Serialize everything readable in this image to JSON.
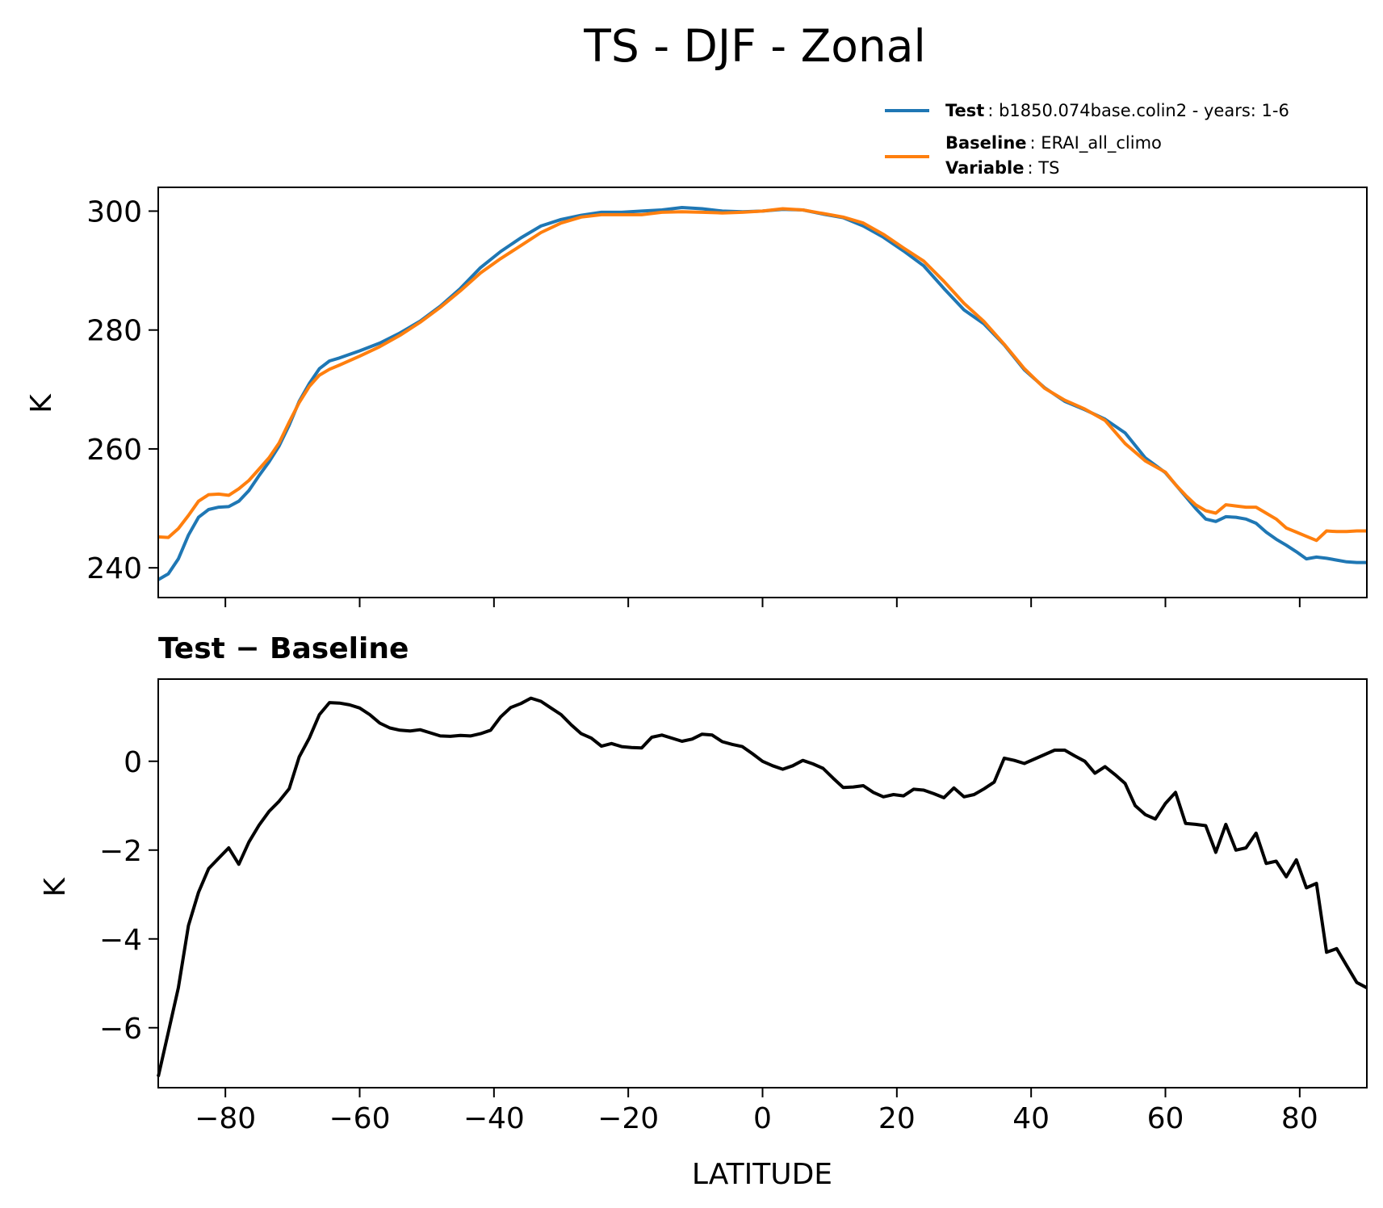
{
  "title": "TS - DJF - Zonal",
  "legend": {
    "test_label": "Test",
    "test_text": ": b1850.074base.colin2 - years: 1-6",
    "baseline_label": "Baseline",
    "baseline_text": ": ERAI_all_climo",
    "variable_label": "Variable",
    "variable_text": ": TS"
  },
  "colors": {
    "test": "#1f77b4",
    "baseline": "#ff7f0e",
    "diff": "#000000"
  },
  "chart_data": [
    {
      "type": "line",
      "title": "",
      "xlabel": "",
      "ylabel": "K",
      "xlim": [
        -90,
        90
      ],
      "ylim": [
        235,
        304
      ],
      "xticks": [
        -80,
        -60,
        -40,
        -20,
        0,
        20,
        40,
        60,
        80
      ],
      "yticks": [
        240,
        260,
        280,
        300
      ],
      "ytick_labels": [
        "240",
        "260",
        "280",
        "300"
      ],
      "legend_position": "top-right",
      "series": [
        {
          "name": "Test",
          "x": [
            -90,
            -88.5,
            -87,
            -85.5,
            -84,
            -82.5,
            -81,
            -79.5,
            -78,
            -76.5,
            -75,
            -73.5,
            -72,
            -70.5,
            -69,
            -67.5,
            -66,
            -64.5,
            -63,
            -60,
            -57,
            -54,
            -51,
            -48,
            -45,
            -42,
            -39,
            -36,
            -33,
            -30,
            -27,
            -24,
            -21,
            -18,
            -15,
            -12,
            -9,
            -6,
            -3,
            0,
            3,
            6,
            9,
            12,
            15,
            18,
            21,
            24,
            27,
            30,
            33,
            36,
            39,
            42,
            45,
            48,
            51,
            54,
            57,
            60,
            61.5,
            63,
            64.5,
            66,
            67.5,
            69,
            70.5,
            72,
            73.5,
            75,
            76.5,
            78,
            79.5,
            81,
            82.5,
            84,
            85.5,
            87,
            88.5,
            90
          ],
          "values": [
            238,
            239,
            241.5,
            245.5,
            248.5,
            249.8,
            250.2,
            250.3,
            251.2,
            253,
            255.5,
            257.8,
            260.5,
            264,
            268,
            271,
            273.5,
            274.8,
            275.3,
            276.5,
            277.8,
            279.5,
            281.5,
            284,
            287,
            290.5,
            293.2,
            295.5,
            297.5,
            298.6,
            299.3,
            299.8,
            299.8,
            300,
            300.2,
            300.6,
            300.4,
            300,
            299.9,
            300,
            300.3,
            300.2,
            299.5,
            298.9,
            297.5,
            295.6,
            293.3,
            290.8,
            287,
            283.4,
            281,
            277.5,
            273.3,
            270.3,
            268,
            266.6,
            265,
            262.7,
            258.5,
            256,
            254,
            252,
            250,
            248.2,
            247.8,
            248.6,
            248.5,
            248.2,
            247.5,
            246,
            244.8,
            243.8,
            242.7,
            241.5,
            241.8,
            241.6,
            241.3,
            241,
            240.9,
            240.9
          ]
        },
        {
          "name": "Baseline",
          "x": [
            -90,
            -88.5,
            -87,
            -85.5,
            -84,
            -82.5,
            -81,
            -79.5,
            -78,
            -76.5,
            -75,
            -73.5,
            -72,
            -70.5,
            -69,
            -67.5,
            -66,
            -64.5,
            -63,
            -60,
            -57,
            -54,
            -51,
            -48,
            -45,
            -42,
            -39,
            -36,
            -33,
            -30,
            -27,
            -24,
            -21,
            -18,
            -15,
            -12,
            -9,
            -6,
            -3,
            0,
            3,
            6,
            9,
            12,
            15,
            18,
            21,
            24,
            27,
            30,
            33,
            36,
            39,
            42,
            45,
            48,
            51,
            54,
            57,
            60,
            61.5,
            63,
            64.5,
            66,
            67.5,
            69,
            70.5,
            72,
            73.5,
            75,
            76.5,
            78,
            79.5,
            81,
            82.5,
            84,
            85.5,
            87,
            88.5,
            90
          ],
          "values": [
            245.2,
            245.1,
            246.6,
            248.8,
            251.2,
            252.3,
            252.4,
            252.2,
            253.3,
            254.7,
            256.6,
            258.5,
            261,
            264.5,
            267.8,
            270.5,
            272.4,
            273.4,
            274.1,
            275.6,
            277.2,
            279.1,
            281.3,
            283.8,
            286.6,
            289.6,
            292,
            294.2,
            296.4,
            298,
            299,
            299.4,
            299.4,
            299.4,
            299.8,
            299.9,
            299.8,
            299.7,
            299.8,
            300,
            300.4,
            300.2,
            299.6,
            299,
            298,
            296.1,
            293.8,
            291.6,
            288.2,
            284.5,
            281.4,
            277.6,
            273.5,
            270.2,
            268.2,
            266.7,
            264.8,
            260.9,
            258,
            256.1,
            254,
            252.2,
            250.6,
            249.6,
            249.2,
            250.6,
            250.4,
            250.2,
            250.2,
            249.2,
            248.2,
            246.7,
            246,
            245.3,
            244.6,
            246.2,
            246.1,
            246.1,
            246.2,
            246.2
          ]
        }
      ]
    },
    {
      "type": "line",
      "title": "Test − Baseline",
      "xlabel": "LATITUDE",
      "ylabel": "K",
      "xlim": [
        -90,
        90
      ],
      "ylim": [
        -7.35,
        1.85
      ],
      "xticks": [
        -80,
        -60,
        -40,
        -20,
        0,
        20,
        40,
        60,
        80
      ],
      "xtick_labels": [
        "−80",
        "−60",
        "−40",
        "−20",
        "0",
        "20",
        "40",
        "60",
        "80"
      ],
      "yticks": [
        -6,
        -4,
        -2,
        0
      ],
      "ytick_labels": [
        "−6",
        "−4",
        "−2",
        "0"
      ],
      "series": [
        {
          "name": "Test − Baseline",
          "x": [
            -90,
            -88.5,
            -87,
            -85.5,
            -84,
            -82.5,
            -81,
            -79.5,
            -78,
            -76.5,
            -75,
            -73.5,
            -72,
            -70.5,
            -69,
            -67.5,
            -66,
            -64.5,
            -63,
            -61.5,
            -60,
            -58.5,
            -57,
            -55.5,
            -54,
            -52.5,
            -51,
            -49.5,
            -48,
            -46.5,
            -45,
            -43.5,
            -42,
            -40.5,
            -39,
            -37.5,
            -36,
            -34.5,
            -33,
            -31.5,
            -30,
            -28.5,
            -27,
            -25.5,
            -24,
            -22.5,
            -21,
            -19.5,
            -18,
            -16.5,
            -15,
            -13.5,
            -12,
            -10.5,
            -9,
            -7.5,
            -6,
            -4.5,
            -3,
            -1.5,
            0,
            1.5,
            3,
            4.5,
            6,
            7.5,
            9,
            10.5,
            12,
            13.5,
            15,
            16.5,
            18,
            19.5,
            21,
            22.5,
            24,
            25.5,
            27,
            28.5,
            30,
            31.5,
            33,
            34.5,
            36,
            37.5,
            39,
            40.5,
            42,
            43.5,
            45,
            46.5,
            48,
            49.5,
            51,
            52.5,
            54,
            55.5,
            57,
            58.5,
            60,
            61.5,
            63,
            64.5,
            66,
            67.5,
            69,
            70.5,
            72,
            73.5,
            75,
            76.5,
            78,
            79.5,
            81,
            82.5,
            84,
            85.5,
            87,
            88.5,
            90
          ],
          "values": [
            -7.1,
            -6.1,
            -5.1,
            -3.7,
            -2.95,
            -2.42,
            -2.18,
            -1.95,
            -2.32,
            -1.82,
            -1.44,
            -1.13,
            -0.9,
            -0.62,
            0.1,
            0.52,
            1.05,
            1.32,
            1.31,
            1.27,
            1.2,
            1.05,
            0.86,
            0.75,
            0.7,
            0.68,
            0.71,
            0.64,
            0.57,
            0.56,
            0.58,
            0.57,
            0.62,
            0.7,
            1.0,
            1.21,
            1.3,
            1.42,
            1.35,
            1.2,
            1.05,
            0.82,
            0.62,
            0.52,
            0.34,
            0.4,
            0.33,
            0.31,
            0.3,
            0.54,
            0.59,
            0.52,
            0.45,
            0.5,
            0.61,
            0.59,
            0.44,
            0.38,
            0.33,
            0.17,
            0.0,
            -0.1,
            -0.18,
            -0.1,
            0.02,
            -0.06,
            -0.16,
            -0.38,
            -0.59,
            -0.58,
            -0.55,
            -0.7,
            -0.8,
            -0.75,
            -0.78,
            -0.63,
            -0.65,
            -0.73,
            -0.82,
            -0.6,
            -0.8,
            -0.75,
            -0.62,
            -0.47,
            0.07,
            0.02,
            -0.05,
            0.05,
            0.15,
            0.25,
            0.25,
            0.12,
            0.0,
            -0.27,
            -0.12,
            -0.3,
            -0.5,
            -1.0,
            -1.2,
            -1.3,
            -0.95,
            -0.7,
            -1.4,
            -1.42,
            -1.45,
            -2.05,
            -1.42,
            -2.0,
            -1.95,
            -1.62,
            -2.3,
            -2.25,
            -2.6,
            -2.22,
            -2.85,
            -2.75,
            -4.3,
            -4.22,
            -4.6,
            -4.98,
            -5.1
          ]
        }
      ]
    }
  ]
}
